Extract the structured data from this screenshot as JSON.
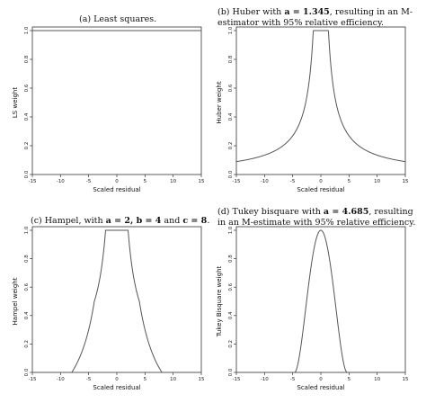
{
  "captions": {
    "a": "(a) Least squares.",
    "b_part1": "(b) Huber with ",
    "b_a": "a = 1.345",
    "b_part2": ", resulting in an M-estimator with 95% relative efficiency.",
    "c_part1": "(c) Hampel, with ",
    "c_params": "a = 2, b = 4",
    "c_and": " and ",
    "c_c": "c = 8",
    "c_end": ".",
    "d_part1": "(d) Tukey bisquare with ",
    "d_a": "a = 4.685",
    "d_part2": ", resulting in an M-estimate with 95% relative efficiency."
  },
  "chart_data": [
    {
      "id": "least-squares",
      "type": "line",
      "title": "",
      "xlabel": "Scaled residual",
      "ylabel": "LS weight",
      "xlim": [
        -15,
        15
      ],
      "ylim": [
        0,
        1
      ],
      "xticks": [
        -15,
        -10,
        -5,
        0,
        5,
        10,
        15
      ],
      "yticks": [
        0.0,
        0.2,
        0.4,
        0.6,
        0.8,
        1.0
      ],
      "ytick_labels": [
        "0.0",
        "0.2",
        "0.4",
        "0.6",
        "0.8",
        "1.0"
      ],
      "weight_function": "least_squares",
      "params": {},
      "series": [
        {
          "x": [
            -15,
            15
          ],
          "y": [
            1,
            1
          ]
        }
      ]
    },
    {
      "id": "huber",
      "type": "line",
      "title": "",
      "xlabel": "Scaled residual",
      "ylabel": "Huber weight",
      "xlim": [
        -15,
        15
      ],
      "ylim": [
        0,
        1
      ],
      "xticks": [
        -15,
        -10,
        -5,
        0,
        5,
        10,
        15
      ],
      "yticks": [
        0.0,
        0.2,
        0.4,
        0.6,
        0.8,
        1.0
      ],
      "ytick_labels": [
        "0.0",
        "0.2",
        "0.4",
        "0.6",
        "0.8",
        "1.0"
      ],
      "weight_function": "huber",
      "params": {
        "a": 1.345
      },
      "series": [
        {
          "x": [
            -15,
            -10,
            -5,
            -2,
            -1.345,
            0,
            1.345,
            2,
            5,
            10,
            15
          ],
          "y": [
            0.09,
            0.13,
            0.27,
            0.67,
            1,
            1,
            1,
            0.67,
            0.27,
            0.13,
            0.09
          ]
        }
      ]
    },
    {
      "id": "hampel",
      "type": "line",
      "title": "",
      "xlabel": "Scaled residual",
      "ylabel": "Hampel weight",
      "xlim": [
        -15,
        15
      ],
      "ylim": [
        0,
        1
      ],
      "xticks": [
        -15,
        -10,
        -5,
        0,
        5,
        10,
        15
      ],
      "yticks": [
        0.0,
        0.2,
        0.4,
        0.6,
        0.8,
        1.0
      ],
      "ytick_labels": [
        "0.0",
        "0.2",
        "0.4",
        "0.6",
        "0.8",
        "1.0"
      ],
      "weight_function": "hampel",
      "params": {
        "a": 2,
        "b": 4,
        "c": 8
      },
      "series": [
        {
          "x": [
            -8,
            -6,
            -4,
            -3,
            -2,
            0,
            2,
            3,
            4,
            6,
            8
          ],
          "y": [
            0,
            0.17,
            0.5,
            0.67,
            1,
            1,
            1,
            0.67,
            0.5,
            0.17,
            0
          ]
        }
      ]
    },
    {
      "id": "tukey",
      "type": "line",
      "title": "",
      "xlabel": "Scaled residual",
      "ylabel": "Tukey Bisquare weight",
      "xlim": [
        -15,
        15
      ],
      "ylim": [
        0,
        1
      ],
      "xticks": [
        -15,
        -10,
        -5,
        0,
        5,
        10,
        15
      ],
      "yticks": [
        0.0,
        0.2,
        0.4,
        0.6,
        0.8,
        1.0
      ],
      "ytick_labels": [
        "0.0",
        "0.2",
        "0.4",
        "0.6",
        "0.8",
        "1.0"
      ],
      "weight_function": "tukey",
      "params": {
        "a": 4.685
      },
      "series": [
        {
          "x": [
            -4.685,
            -3,
            -2,
            -1,
            0,
            1,
            2,
            3,
            4.685
          ],
          "y": [
            0,
            0.35,
            0.67,
            0.91,
            1,
            0.91,
            0.67,
            0.35,
            0
          ]
        }
      ]
    }
  ]
}
